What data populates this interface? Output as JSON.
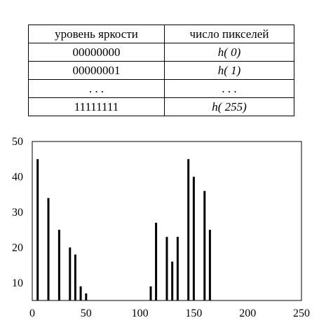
{
  "table": {
    "headers": [
      "уровень яркости",
      "число пикселей"
    ],
    "rows": [
      [
        "00000000",
        "h( 0)"
      ],
      [
        "00000001",
        "h( 1)"
      ],
      [
        ". . .",
        ". . ."
      ],
      [
        "11111111",
        "h( 255)"
      ]
    ]
  },
  "chart_data": {
    "type": "bar",
    "xlim": [
      0,
      250
    ],
    "ylim": [
      5,
      50
    ],
    "x_ticks": [
      0,
      50,
      100,
      150,
      200,
      250
    ],
    "y_ticks": [
      10,
      20,
      30,
      40,
      50
    ],
    "bars": [
      {
        "x": 5,
        "y": 45
      },
      {
        "x": 15,
        "y": 34
      },
      {
        "x": 25,
        "y": 25
      },
      {
        "x": 35,
        "y": 20
      },
      {
        "x": 40,
        "y": 18
      },
      {
        "x": 45,
        "y": 9
      },
      {
        "x": 50,
        "y": 7
      },
      {
        "x": 110,
        "y": 9
      },
      {
        "x": 115,
        "y": 27
      },
      {
        "x": 125,
        "y": 23
      },
      {
        "x": 130,
        "y": 16
      },
      {
        "x": 135,
        "y": 23
      },
      {
        "x": 145,
        "y": 45
      },
      {
        "x": 150,
        "y": 40
      },
      {
        "x": 160,
        "y": 36
      },
      {
        "x": 165,
        "y": 25
      }
    ],
    "bar_color": "#000000"
  }
}
